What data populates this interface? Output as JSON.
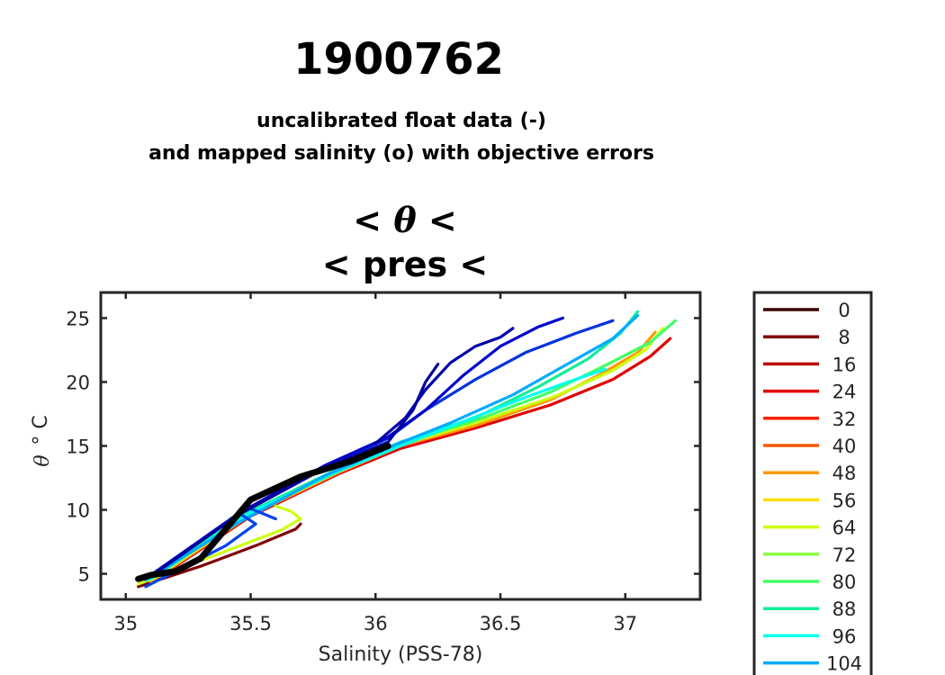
{
  "chart_data": {
    "type": "line",
    "title": "1900762",
    "subtitle_lines": [
      "uncalibrated float data (-)",
      "and mapped salinity (o) with objective errors"
    ],
    "plot_title_line1_parts": [
      "<",
      "θ",
      "<"
    ],
    "plot_title_line2": "< pres <",
    "xlabel": "Salinity (PSS-78)",
    "ylabel_symbol": "θ",
    "ylabel_unit": "° C",
    "xlim": [
      34.9,
      37.3
    ],
    "ylim": [
      3,
      27
    ],
    "xticks": [
      35,
      35.5,
      36,
      36.5,
      37
    ],
    "xtick_labels": [
      "35",
      "35.5",
      "36",
      "36.5",
      "37"
    ],
    "yticks": [
      5,
      10,
      15,
      20,
      25
    ],
    "ytick_labels": [
      "5",
      "10",
      "15",
      "20",
      "25"
    ],
    "grid": false,
    "legend": {
      "placement": "right-outside",
      "entries": [
        {
          "label": "0",
          "color": "#3b0000"
        },
        {
          "label": "8",
          "color": "#800000"
        },
        {
          "label": "16",
          "color": "#c00000"
        },
        {
          "label": "24",
          "color": "#e00000"
        },
        {
          "label": "32",
          "color": "#ff2000"
        },
        {
          "label": "40",
          "color": "#ff5500"
        },
        {
          "label": "48",
          "color": "#ff9900"
        },
        {
          "label": "56",
          "color": "#ffdd00"
        },
        {
          "label": "64",
          "color": "#ccff11"
        },
        {
          "label": "72",
          "color": "#88ff44"
        },
        {
          "label": "80",
          "color": "#44ff66"
        },
        {
          "label": "88",
          "color": "#11ee99"
        },
        {
          "label": "96",
          "color": "#00ffee"
        },
        {
          "label": "104",
          "color": "#00aaff"
        }
      ]
    },
    "series": [
      {
        "color": "#800000",
        "x": [
          35.05,
          35.3,
          35.52,
          35.68,
          35.7
        ],
        "y": [
          4.0,
          5.6,
          7.2,
          8.5,
          8.9
        ]
      },
      {
        "color": "#e00000",
        "x": [
          35.1,
          35.5,
          35.85,
          36.1,
          36.4,
          36.7,
          36.95,
          37.1,
          37.18
        ],
        "y": [
          4.3,
          9.5,
          12.8,
          14.8,
          16.4,
          18.2,
          20.2,
          22.0,
          23.4
        ]
      },
      {
        "color": "#ff9900",
        "x": [
          35.1,
          35.5,
          35.85,
          36.1,
          36.4,
          36.7,
          36.9,
          37.05,
          37.12
        ],
        "y": [
          4.4,
          9.6,
          12.9,
          15.0,
          16.6,
          18.6,
          20.6,
          22.3,
          23.9
        ]
      },
      {
        "color": "#ccff11",
        "x": [
          35.05,
          35.35,
          35.62,
          35.7,
          35.66,
          35.6
        ],
        "y": [
          4.2,
          6.4,
          8.4,
          9.3,
          9.9,
          10.3
        ]
      },
      {
        "color": "#ccff11",
        "x": [
          35.1,
          35.5,
          35.85,
          36.1,
          36.4,
          36.72,
          36.95,
          37.08,
          37.15
        ],
        "y": [
          4.5,
          9.7,
          13.0,
          15.1,
          16.8,
          18.9,
          20.9,
          22.5,
          24.2
        ]
      },
      {
        "color": "#44ff66",
        "x": [
          35.1,
          35.5,
          35.85,
          36.1,
          36.4,
          36.7,
          36.92,
          37.1,
          37.2
        ],
        "y": [
          4.6,
          9.8,
          13.1,
          15.2,
          17.0,
          19.2,
          21.3,
          23.1,
          24.8
        ]
      },
      {
        "color": "#11ee99",
        "x": [
          35.1,
          35.5,
          35.85,
          36.1,
          36.4,
          36.65,
          36.85,
          36.98,
          37.05
        ],
        "y": [
          4.7,
          9.9,
          13.2,
          15.3,
          17.2,
          19.6,
          21.8,
          23.8,
          25.5
        ]
      },
      {
        "color": "#00ffee",
        "x": [
          35.1,
          35.5,
          35.85,
          36.1,
          36.35,
          36.6,
          36.8,
          36.92
        ],
        "y": [
          4.6,
          9.8,
          13.0,
          15.0,
          16.9,
          18.8,
          20.2,
          21.0
        ]
      },
      {
        "color": "#00aaff",
        "x": [
          35.08,
          35.45,
          35.8,
          36.08,
          36.3,
          36.55,
          36.75,
          36.95,
          37.05
        ],
        "y": [
          4.5,
          9.0,
          12.7,
          15.1,
          16.8,
          19.0,
          21.2,
          23.4,
          25.2
        ]
      },
      {
        "color": "#0044ee",
        "x": [
          35.08,
          35.4,
          35.52,
          35.45,
          35.5,
          35.6
        ],
        "y": [
          4.0,
          7.2,
          8.9,
          9.8,
          10.1,
          9.3
        ]
      },
      {
        "color": "#0033dd",
        "x": [
          35.1,
          35.45,
          35.8,
          36.05,
          36.2,
          36.4,
          36.6,
          36.8,
          36.95
        ],
        "y": [
          4.8,
          9.6,
          13.4,
          15.6,
          17.8,
          20.2,
          22.3,
          23.8,
          24.8
        ]
      },
      {
        "color": "#0000cc",
        "x": [
          35.1,
          35.45,
          35.8,
          36.05,
          36.2,
          36.35,
          36.5,
          36.65,
          36.75
        ],
        "y": [
          4.9,
          9.7,
          13.5,
          15.7,
          17.8,
          20.5,
          22.8,
          24.3,
          25.0
        ]
      },
      {
        "color": "#000099",
        "x": [
          35.1,
          35.45,
          35.8,
          36.05,
          36.15,
          36.2,
          36.25
        ],
        "y": [
          4.8,
          9.6,
          13.3,
          15.3,
          17.8,
          20.0,
          21.4
        ]
      },
      {
        "color": "#0000aa",
        "x": [
          36.0,
          36.12,
          36.2,
          36.3,
          36.4,
          36.5,
          36.55
        ],
        "y": [
          15.2,
          17.2,
          19.4,
          21.5,
          22.8,
          23.5,
          24.2
        ]
      },
      {
        "color": "#000000",
        "x": [
          35.05,
          35.1,
          35.2,
          35.3,
          35.5,
          35.7,
          35.9,
          36.05
        ],
        "y": [
          4.6,
          4.9,
          5.2,
          6.2,
          10.8,
          12.6,
          13.8,
          15.0
        ]
      }
    ]
  }
}
